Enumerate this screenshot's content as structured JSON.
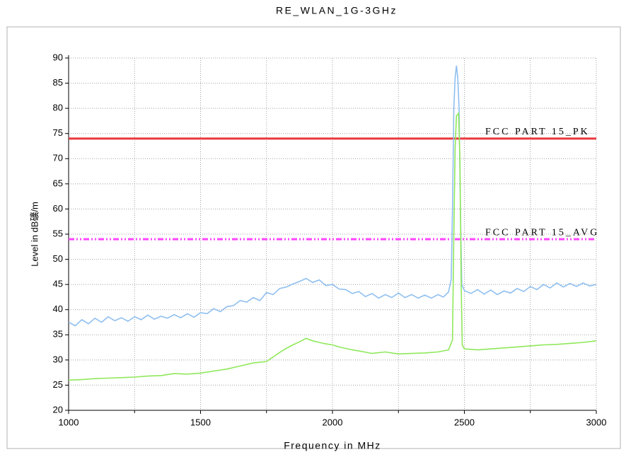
{
  "chart_data": {
    "type": "line",
    "title": "RE_WLAN_1G-3GHz",
    "xlabel": "Frequency in MHz",
    "ylabel": "Level in dB礦/m",
    "xlim": [
      1000,
      3000
    ],
    "xticks": [
      1000,
      1500,
      2000,
      2500,
      3000
    ],
    "xminor_ticks": [
      1250,
      1750,
      2250,
      2750
    ],
    "ylim": [
      20,
      90
    ],
    "yticks": [
      20,
      25,
      30,
      35,
      40,
      45,
      50,
      55,
      60,
      65,
      70,
      75,
      80,
      85,
      90
    ],
    "grid": true,
    "series": [
      {
        "color": "#8fbff0",
        "x": [
          1000,
          1025,
          1050,
          1075,
          1100,
          1125,
          1150,
          1175,
          1200,
          1225,
          1250,
          1275,
          1300,
          1325,
          1350,
          1375,
          1400,
          1425,
          1450,
          1475,
          1500,
          1525,
          1550,
          1575,
          1600,
          1625,
          1650,
          1675,
          1700,
          1725,
          1750,
          1775,
          1800,
          1825,
          1850,
          1875,
          1900,
          1925,
          1950,
          1975,
          2000,
          2025,
          2050,
          2075,
          2100,
          2125,
          2150,
          2175,
          2200,
          2225,
          2250,
          2275,
          2300,
          2325,
          2350,
          2375,
          2400,
          2420,
          2440,
          2450,
          2455,
          2460,
          2465,
          2470,
          2475,
          2480,
          2485,
          2490,
          2500,
          2525,
          2550,
          2575,
          2600,
          2625,
          2650,
          2675,
          2700,
          2725,
          2750,
          2775,
          2800,
          2825,
          2850,
          2875,
          2900,
          2925,
          2950,
          2975,
          3000
        ],
        "values": [
          37.5,
          36.8,
          38,
          37.2,
          38.3,
          37.5,
          38.6,
          37.8,
          38.4,
          37.7,
          38.6,
          38,
          38.9,
          38.1,
          38.7,
          38.3,
          39,
          38.4,
          39.2,
          38.5,
          39.4,
          39.2,
          40.2,
          39.6,
          40.6,
          40.8,
          41.8,
          41.5,
          42.4,
          41.8,
          43.4,
          43,
          44.2,
          44.5,
          45.1,
          45.6,
          46.2,
          45.4,
          45.9,
          44.8,
          45,
          44.1,
          44,
          43.2,
          43.6,
          42.6,
          43.2,
          42.3,
          43,
          42.4,
          43.3,
          42.4,
          43,
          42.3,
          42.9,
          42.3,
          43,
          42.5,
          43.5,
          46,
          60,
          80,
          86,
          88.5,
          86,
          80,
          60,
          45,
          43.8,
          43.2,
          44,
          43.1,
          43.9,
          43,
          43.7,
          43.3,
          44.2,
          43.6,
          44.6,
          44,
          45,
          44.3,
          45.3,
          44.5,
          45.2,
          44.6,
          45.3,
          44.7,
          45
        ]
      },
      {
        "color": "#8fe85a",
        "x": [
          1000,
          1050,
          1100,
          1150,
          1200,
          1250,
          1300,
          1350,
          1400,
          1450,
          1500,
          1550,
          1600,
          1650,
          1700,
          1750,
          1775,
          1800,
          1825,
          1850,
          1875,
          1900,
          1925,
          1950,
          1975,
          2000,
          2025,
          2050,
          2075,
          2100,
          2150,
          2200,
          2250,
          2300,
          2350,
          2400,
          2440,
          2455,
          2460,
          2465,
          2470,
          2478,
          2483,
          2488,
          2492,
          2500,
          2550,
          2600,
          2650,
          2700,
          2750,
          2800,
          2850,
          2900,
          2950,
          3000
        ],
        "values": [
          26,
          26.1,
          26.3,
          26.4,
          26.5,
          26.6,
          26.8,
          26.9,
          27.3,
          27.2,
          27.4,
          27.8,
          28.2,
          28.8,
          29.4,
          29.7,
          30.6,
          31.5,
          32.3,
          33,
          33.6,
          34.3,
          33.8,
          33.5,
          33.2,
          33,
          32.6,
          32.3,
          32,
          31.8,
          31.3,
          31.6,
          31.2,
          31.3,
          31.4,
          31.6,
          32,
          34,
          55,
          72,
          78.5,
          79,
          70,
          45,
          33,
          32.2,
          32,
          32.2,
          32.4,
          32.6,
          32.8,
          33,
          33.1,
          33.3,
          33.5,
          33.8
        ]
      }
    ],
    "limits": [
      {
        "label": "FCC PART 15_PK",
        "value": 74,
        "color": "#e8383d",
        "style": "solid"
      },
      {
        "label": "FCC PART 15_AVG",
        "value": 54,
        "color": "#ff44ff",
        "style": "dashdot"
      }
    ]
  }
}
